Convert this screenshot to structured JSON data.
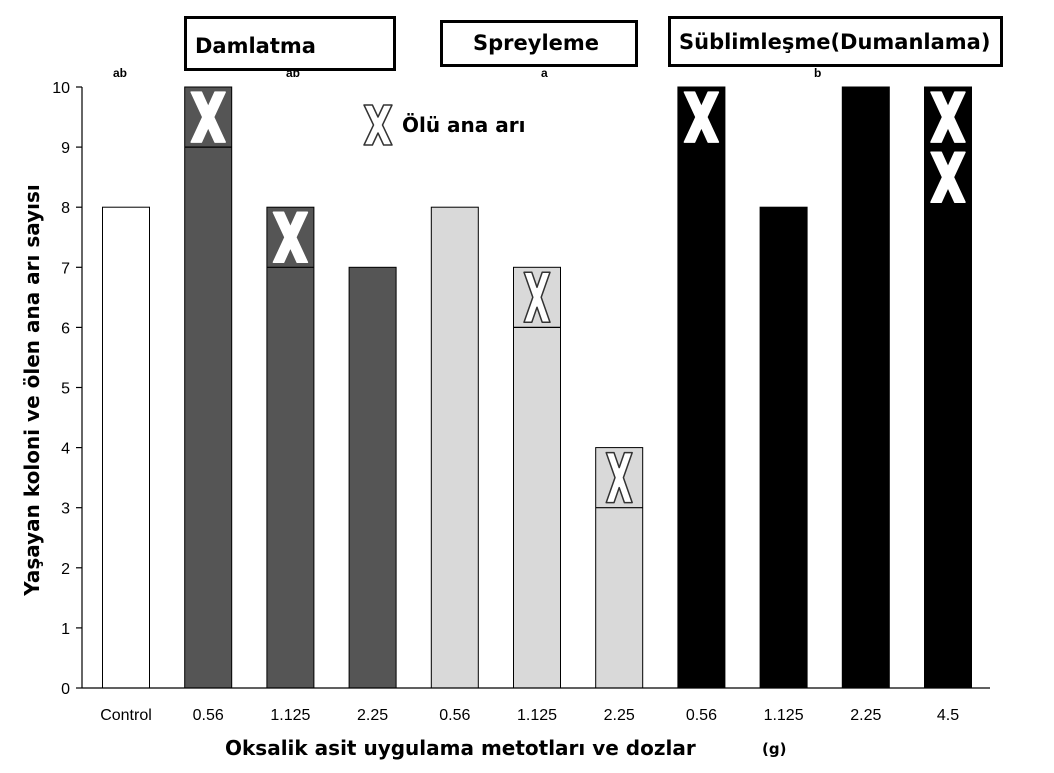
{
  "chart_data": {
    "type": "bar",
    "ylabel": "Yaşayan koloni ve ölen ana arı sayısı",
    "xlabel": "Oksalik asit uygulama metotları ve dozlar",
    "x_unit": "(g)",
    "ylim": [
      0,
      10
    ],
    "yticks": [
      "0",
      "1",
      "2",
      "3",
      "4",
      "5",
      "6",
      "7",
      "8",
      "9",
      "10"
    ],
    "legend": {
      "marker": "X",
      "label": "Ölü ana arı"
    },
    "groups": [
      {
        "name": "Control",
        "label": "",
        "significance": "ab",
        "color": "#ffffff"
      },
      {
        "name": "Damlatma",
        "label": "Damlatma",
        "significance": "ab",
        "color": "#555555"
      },
      {
        "name": "Spreyleme",
        "label": "Spreyleme",
        "significance": "a",
        "color": "#d9d9d9"
      },
      {
        "name": "Süblimleşme",
        "label": "Süblimleşme(Dumanlama)",
        "significance": "b",
        "color": "#000000"
      }
    ],
    "bars": [
      {
        "category": "Control",
        "group": 0,
        "alive": 8,
        "dead_queens": 0
      },
      {
        "category": "0.56",
        "group": 1,
        "alive": 9,
        "dead_queens": 1
      },
      {
        "category": "1.125",
        "group": 1,
        "alive": 7,
        "dead_queens": 1
      },
      {
        "category": "2.25",
        "group": 1,
        "alive": 7,
        "dead_queens": 0
      },
      {
        "category": "0.56",
        "group": 2,
        "alive": 8,
        "dead_queens": 0
      },
      {
        "category": "1.125",
        "group": 2,
        "alive": 6,
        "dead_queens": 1
      },
      {
        "category": "2.25",
        "group": 2,
        "alive": 3,
        "dead_queens": 1
      },
      {
        "category": "0.56",
        "group": 3,
        "alive": 9,
        "dead_queens": 1
      },
      {
        "category": "1.125",
        "group": 3,
        "alive": 8,
        "dead_queens": 0
      },
      {
        "category": "2.25",
        "group": 3,
        "alive": 10,
        "dead_queens": 0
      },
      {
        "category": "4.5",
        "group": 3,
        "alive": 8,
        "dead_queens": 2
      }
    ]
  }
}
